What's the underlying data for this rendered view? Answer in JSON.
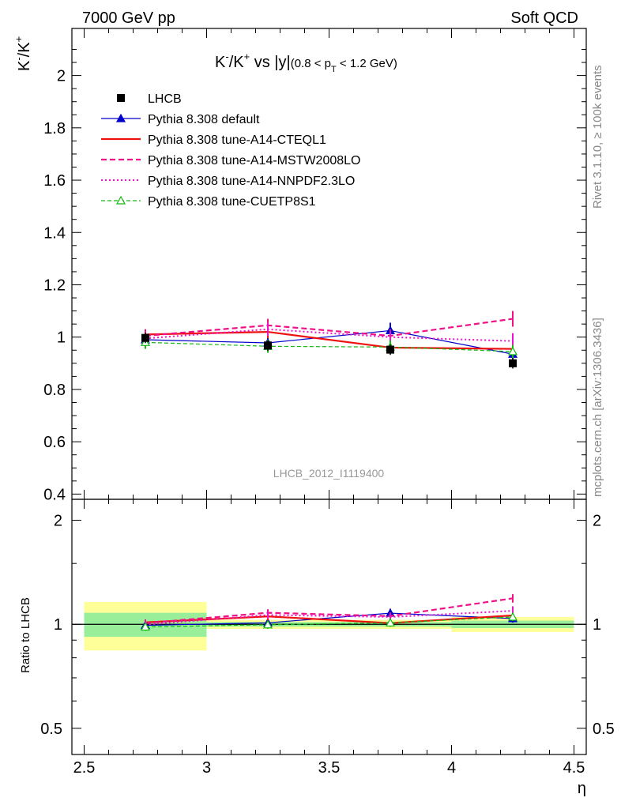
{
  "header": {
    "left_label": "7000 GeV pp",
    "right_label": "Soft QCD"
  },
  "side": {
    "rivet_label": "Rivet 3.1.10, ≥ 100k events",
    "mcplots_label": "mcplots.cern.ch [arXiv:1306.3436]"
  },
  "analysis_id": "LHCB_2012_I1119400",
  "colors": {
    "data": "#000000",
    "default": "#0000cc",
    "cteql1": "#ee1111",
    "mstw": "#ee1188",
    "nnpdf": "#ee11cc",
    "cuetp8s1": "#11bb11",
    "band_inner": "#99ee99",
    "band_outer": "#ffff99"
  },
  "chart_data": [
    {
      "type": "line",
      "title_main": "K",
      "title_sup1": "-",
      "title_mid": "/K",
      "title_sup2": "+",
      "title_vs": " vs |y|",
      "title_range_pre": "(0.8 < p",
      "title_range_sub": "T",
      "title_range_post": " < 1.2 GeV)",
      "ylabel_main": "K",
      "ylabel_sup1": "-",
      "ylabel_mid": "/K",
      "ylabel_sup2": "+",
      "ylim": [
        0.38,
        2.18
      ],
      "yticks": [
        0.4,
        0.6,
        0.8,
        1,
        1.2,
        1.4,
        1.6,
        1.8,
        2
      ],
      "ytick_labels": [
        "0.4",
        "0.6",
        "0.8",
        "1",
        "1.2",
        "1.4",
        "1.6",
        "1.8",
        "2"
      ],
      "xlim": [
        2.45,
        4.55
      ],
      "legend_position": "top-left",
      "x": [
        2.75,
        3.25,
        3.75,
        4.25
      ],
      "data": {
        "name": "LHCB",
        "x": [
          2.75,
          3.25,
          3.75,
          4.25
        ],
        "bins": [
          [
            2.5,
            3.0
          ],
          [
            3.0,
            3.5
          ],
          [
            3.5,
            4.0
          ],
          [
            4.0,
            4.5
          ]
        ],
        "values": [
          0.997,
          0.968,
          0.952,
          0.9
        ],
        "errors": [
          0.02,
          0.02,
          0.02,
          0.02
        ]
      },
      "series": [
        {
          "name": "Pythia 8.308 default",
          "key": "default",
          "style": "solid-triangle",
          "values": [
            0.99,
            0.978,
            1.025,
            0.935
          ],
          "errors": [
            0.02,
            0.02,
            0.03,
            0.025
          ]
        },
        {
          "name": "Pythia 8.308 tune-A14-CTEQL1",
          "key": "cteql1",
          "style": "solid-thick",
          "values": [
            1.01,
            1.02,
            0.96,
            0.955
          ],
          "errors": [
            0.02,
            0.025,
            0.02,
            0.025
          ]
        },
        {
          "name": "Pythia 8.308 tune-A14-MSTW2008LO",
          "key": "mstw",
          "style": "dashed",
          "values": [
            1.005,
            1.045,
            1.005,
            1.07
          ],
          "errors": [
            0.025,
            0.025,
            0.025,
            0.03
          ]
        },
        {
          "name": "Pythia 8.308 tune-A14-NNPDF2.3LO",
          "key": "nnpdf",
          "style": "dotted",
          "values": [
            0.995,
            1.03,
            1.0,
            0.985
          ],
          "errors": [
            0.02,
            0.025,
            0.02,
            0.03
          ]
        },
        {
          "name": "Pythia 8.308 tune-CUETP8S1",
          "key": "cuetp8s1",
          "style": "dashed-open-triangle",
          "values": [
            0.98,
            0.965,
            0.962,
            0.945
          ],
          "errors": [
            0.025,
            0.025,
            0.025,
            0.025
          ]
        }
      ]
    },
    {
      "type": "line",
      "ylabel": "Ratio to LHCB",
      "ylog": true,
      "ylim": [
        0.42,
        2.3
      ],
      "yticks": [
        0.5,
        1,
        2
      ],
      "ytick_labels": [
        "0.5",
        "1",
        "2"
      ],
      "xlabel": "η",
      "xlim": [
        2.45,
        4.55
      ],
      "xticks": [
        2.5,
        3,
        3.5,
        4,
        4.5
      ],
      "xtick_labels": [
        "2.5",
        "3",
        "3.5",
        "4",
        "4.5"
      ],
      "bands": [
        {
          "x": [
            2.5,
            3.0
          ],
          "inner": [
            0.92,
            1.08
          ],
          "outer": [
            0.84,
            1.16
          ]
        },
        {
          "x": [
            3.0,
            3.5
          ],
          "inner": [
            0.985,
            1.015
          ],
          "outer": [
            0.97,
            1.03
          ]
        },
        {
          "x": [
            3.5,
            4.0
          ],
          "inner": [
            0.985,
            1.015
          ],
          "outer": [
            0.97,
            1.03
          ]
        },
        {
          "x": [
            4.0,
            4.5
          ],
          "inner": [
            0.975,
            1.025
          ],
          "outer": [
            0.95,
            1.05
          ]
        }
      ],
      "series": [
        {
          "key": "default",
          "values": [
            0.993,
            1.01,
            1.077,
            1.039
          ]
        },
        {
          "key": "cteql1",
          "values": [
            1.013,
            1.054,
            1.008,
            1.061
          ]
        },
        {
          "key": "mstw",
          "values": [
            1.008,
            1.08,
            1.056,
            1.189
          ]
        },
        {
          "key": "nnpdf",
          "values": [
            0.998,
            1.064,
            1.05,
            1.094
          ]
        },
        {
          "key": "cuetp8s1",
          "values": [
            0.983,
            0.997,
            1.01,
            1.05
          ]
        }
      ]
    }
  ]
}
